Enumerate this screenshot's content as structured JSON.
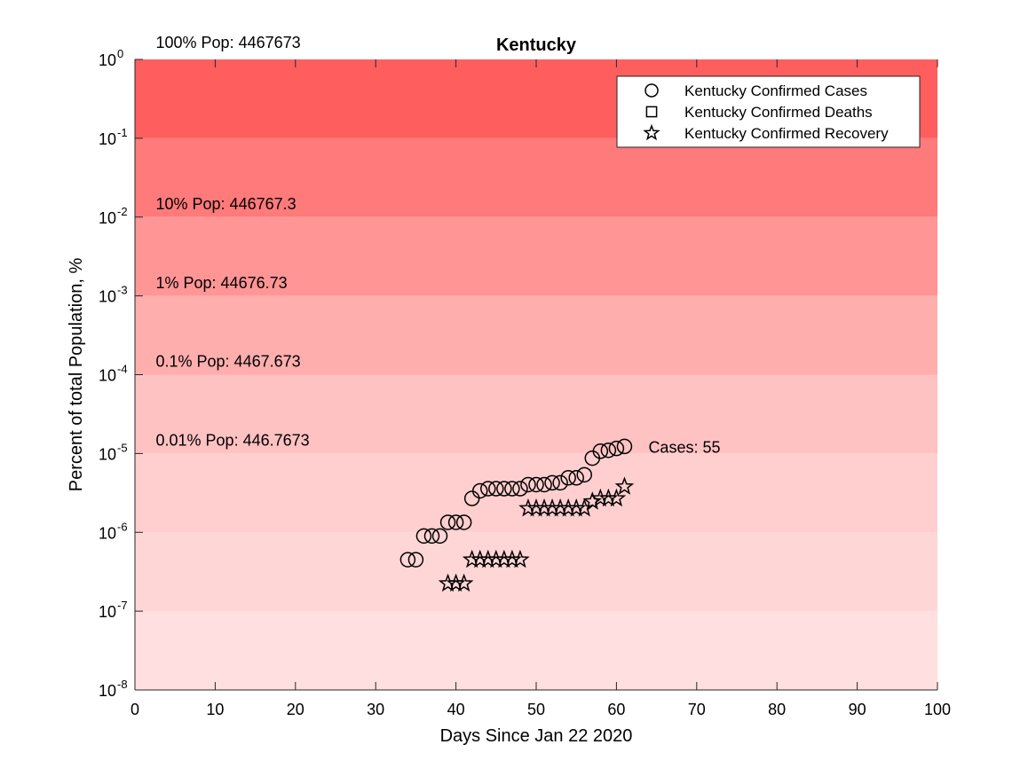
{
  "chart_data": {
    "type": "scatter",
    "title": "Kentucky",
    "xlabel": "Days Since Jan 22 2020",
    "ylabel": "Percent of total Population, %",
    "xlim": [
      0,
      100
    ],
    "ylim": [
      1e-08,
      1
    ],
    "yscale": "log",
    "x_ticks": [
      0,
      10,
      20,
      30,
      40,
      50,
      60,
      70,
      80,
      90,
      100
    ],
    "y_ticks": [
      {
        "base": "10",
        "exp": "-8",
        "value": 1e-08
      },
      {
        "base": "10",
        "exp": "-7",
        "value": 1e-07
      },
      {
        "base": "10",
        "exp": "-6",
        "value": 1e-06
      },
      {
        "base": "10",
        "exp": "-5",
        "value": 1e-05
      },
      {
        "base": "10",
        "exp": "-4",
        "value": 0.0001
      },
      {
        "base": "10",
        "exp": "-3",
        "value": 0.001
      },
      {
        "base": "10",
        "exp": "-2",
        "value": 0.01
      },
      {
        "base": "10",
        "exp": "-1",
        "value": 0.1
      },
      {
        "base": "10",
        "exp": "0",
        "value": 1
      }
    ],
    "bands": [
      {
        "y0": 0.1,
        "y1": 1,
        "color": "#ff5e5e",
        "label": "100% Pop: 4467673"
      },
      {
        "y0": 0.01,
        "y1": 0.1,
        "color": "#ff7a7a",
        "label": "10% Pop: 446767.3"
      },
      {
        "y0": 0.001,
        "y1": 0.01,
        "color": "#ff9595",
        "label": "1% Pop: 44676.73"
      },
      {
        "y0": 0.0001,
        "y1": 0.001,
        "color": "#ffaeae",
        "label": "0.1% Pop: 4467.673"
      },
      {
        "y0": 1e-05,
        "y1": 0.0001,
        "color": "#ffc2c2",
        "label": "0.01% Pop: 446.7673"
      },
      {
        "y0": 1e-06,
        "y1": 1e-05,
        "color": "#ffcfcf",
        "label": ""
      },
      {
        "y0": 1e-07,
        "y1": 1e-06,
        "color": "#ffd6d6",
        "label": ""
      },
      {
        "y0": 1e-08,
        "y1": 1e-07,
        "color": "#ffdfdf",
        "label": ""
      }
    ],
    "legend": {
      "position": "top-right",
      "entries": [
        {
          "marker": "circle",
          "label": "Kentucky Confirmed Cases"
        },
        {
          "marker": "square",
          "label": "Kentucky Confirmed Deaths"
        },
        {
          "marker": "star",
          "label": "Kentucky Confirmed Recovery"
        }
      ]
    },
    "annotation": {
      "text": "Cases: 55"
    },
    "series": [
      {
        "name": "Kentucky Confirmed Cases",
        "marker": "circle",
        "x": [
          34,
          35,
          36,
          37,
          38,
          39,
          40,
          41,
          42,
          43,
          44,
          45,
          46,
          47,
          48,
          49,
          50,
          51,
          52,
          53,
          54,
          55,
          56,
          57,
          58,
          59,
          60,
          61
        ],
        "y": [
          4.5e-07,
          4.5e-07,
          9e-07,
          9e-07,
          9e-07,
          1.34e-06,
          1.34e-06,
          1.34e-06,
          2.69e-06,
          3.36e-06,
          3.58e-06,
          3.58e-06,
          3.58e-06,
          3.58e-06,
          3.58e-06,
          4.03e-06,
          4.03e-06,
          4.03e-06,
          4.25e-06,
          4.25e-06,
          4.92e-06,
          4.92e-06,
          5.37e-06,
          8.73e-06,
          1.07e-05,
          1.1e-05,
          1.16e-05,
          1.23e-05
        ]
      },
      {
        "name": "Kentucky Confirmed Deaths",
        "marker": "square",
        "x": [],
        "y": []
      },
      {
        "name": "Kentucky Confirmed Recovery",
        "marker": "star",
        "x": [
          39,
          40,
          41,
          42,
          43,
          44,
          45,
          46,
          47,
          48,
          49,
          50,
          51,
          52,
          53,
          54,
          55,
          56,
          57,
          58,
          59,
          60,
          61
        ],
        "y": [
          2.24e-07,
          2.24e-07,
          2.24e-07,
          4.5e-07,
          4.5e-07,
          4.5e-07,
          4.5e-07,
          4.5e-07,
          4.5e-07,
          4.5e-07,
          2.01e-06,
          2.01e-06,
          2.01e-06,
          2.01e-06,
          2.01e-06,
          2.01e-06,
          2.01e-06,
          2.01e-06,
          2.46e-06,
          2.69e-06,
          2.69e-06,
          2.69e-06,
          3.8e-06
        ]
      }
    ]
  }
}
